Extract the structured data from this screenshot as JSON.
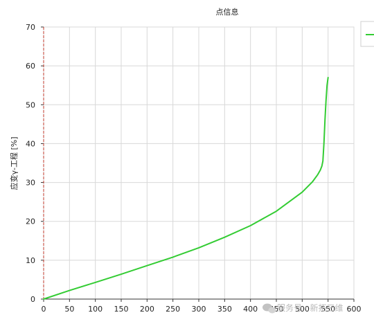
{
  "chart_data": {
    "type": "line",
    "title": "点信息",
    "xlabel": "",
    "ylabel": "应变γ-工程 [%]",
    "xlim": [
      0,
      600
    ],
    "ylim": [
      0,
      70
    ],
    "x_ticks": [
      "0",
      "50",
      "100",
      "150",
      "200",
      "250",
      "300",
      "350",
      "400",
      "450",
      "500",
      "550",
      "600"
    ],
    "y_ticks": [
      "0",
      "10",
      "20",
      "30",
      "40",
      "50",
      "60",
      "70"
    ],
    "grid": true,
    "legend": "top-right",
    "series": [
      {
        "color": "#33cc33",
        "points": [
          [
            0,
            0
          ],
          [
            50,
            2.2
          ],
          [
            100,
            4.3
          ],
          [
            150,
            6.4
          ],
          [
            200,
            8.6
          ],
          [
            250,
            10.8
          ],
          [
            300,
            13.2
          ],
          [
            350,
            15.9
          ],
          [
            400,
            18.9
          ],
          [
            450,
            22.6
          ],
          [
            500,
            27.5
          ],
          [
            520,
            30.2
          ],
          [
            530,
            32.0
          ],
          [
            535,
            33.2
          ],
          [
            538,
            34.2
          ],
          [
            540,
            35.5
          ],
          [
            542,
            40
          ],
          [
            544,
            46
          ],
          [
            546,
            51
          ],
          [
            548,
            55
          ],
          [
            550,
            57
          ]
        ]
      }
    ]
  },
  "watermark": {
    "text": "服务号 · 新拓三维"
  }
}
